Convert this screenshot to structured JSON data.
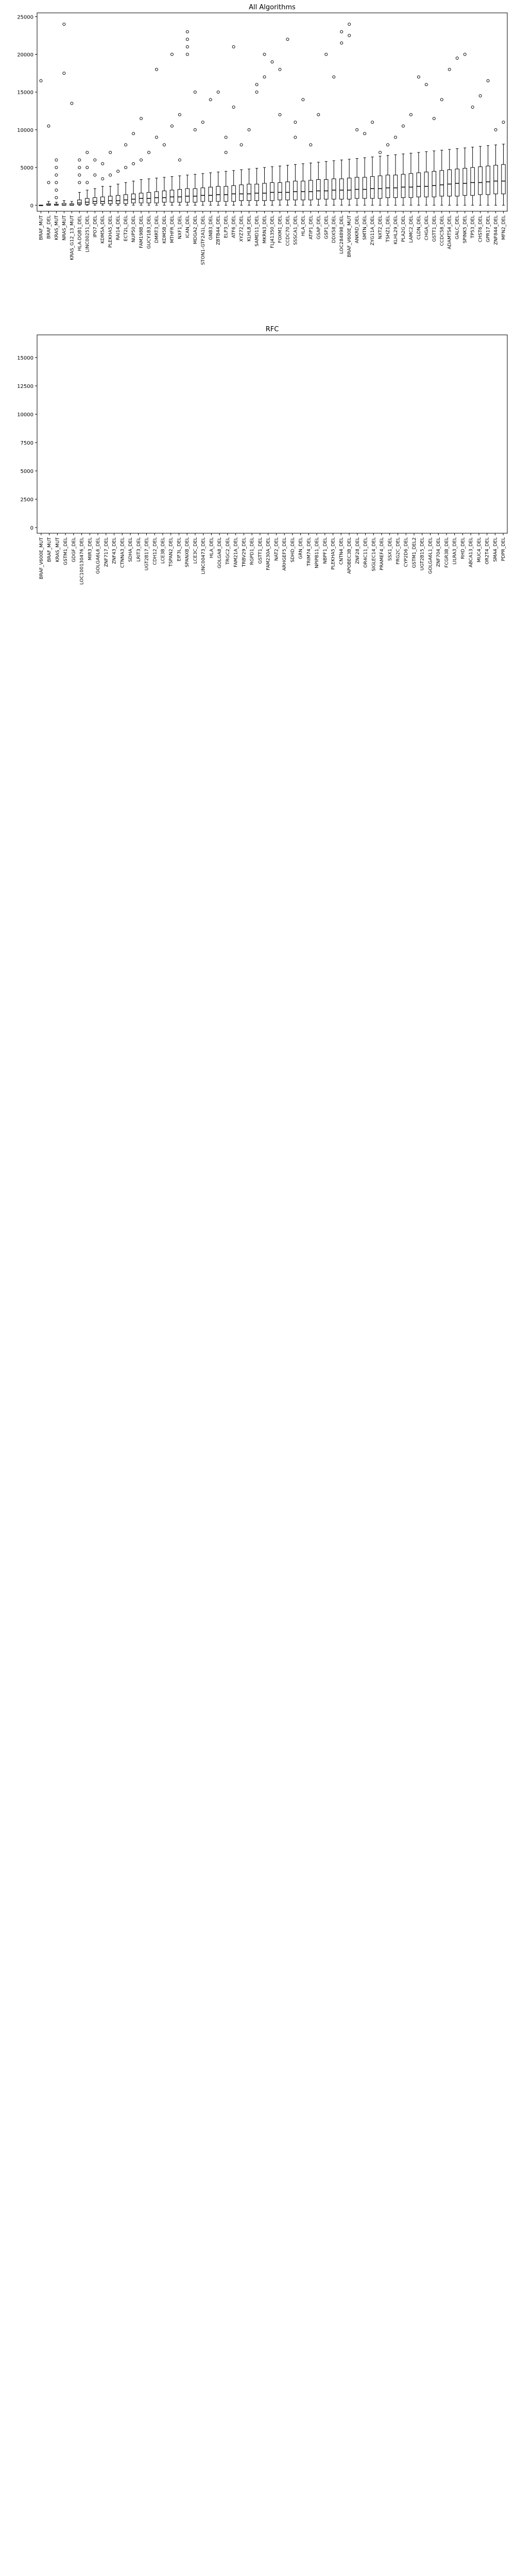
{
  "figure": {
    "background": "#ffffff",
    "box_color": "#000000",
    "median_color": "#000000"
  },
  "chart_data": [
    {
      "type": "box",
      "title": "All Algorithms",
      "ylim": [
        -800,
        25500
      ],
      "yticks": [
        0,
        5000,
        10000,
        15000,
        20000,
        25000
      ],
      "categories": [
        "BRAF_MUT",
        "BRAF_DEL",
        "KRAS_MUT",
        "NRAS_MUT",
        "KRAS_G12_13_MUT",
        "HLA-DQB1_DEL",
        "LINC00251_DEL",
        "IPO7_DEL",
        "KDM5A_DEL",
        "PLEKHA5_DEL",
        "RAI14_DEL",
        "ECT2L_DEL",
        "NUP50_DEL",
        "FAM198B_DEL",
        "GUCY1B3_DEL",
        "DMRT3_DEL",
        "KDM5B_DEL",
        "MTHFR_DEL",
        "NXF1_DEL",
        "ICAN_DEL",
        "MDGA2_DEL",
        "STON1-GTF2A1L_DEL",
        "GNB3_DEL",
        "ZBTB44_DEL",
        "ELP3_DEL",
        "ATF6_DEL",
        "XYZ72_DEL",
        "KLHL8_DEL",
        "SAMD11_DEL",
        "MKRN3_DEL",
        "FLJ41350_DEL",
        "FOXM1_DEL",
        "CCDC70_DEL",
        "SSSCA1_DEL",
        "HLA_DEL",
        "ATIP1_DEL",
        "GSAP_DEL",
        "GSP1_DEL",
        "DDX58_DEL",
        "LOC284898_DEL",
        "BRAF_V600E_MUT",
        "ANKRD_DEL",
        "SMTN_DEL",
        "ZYG11A_DEL",
        "NXT2_DEL",
        "TSHZ1_DEL",
        "KLHL29_DEL",
        "PLA2G_DEL",
        "LAMC2_DEL",
        "CLDN_DEL",
        "CHGA_DEL",
        "GSTT1_DEL",
        "CCDC58_DEL",
        "ADAMTS4_DEL",
        "GALC_DEL",
        "SPINK5_DEL",
        "TP53_DEL",
        "CHST6_DEL",
        "GPR17_DEL",
        "ZNF844_DEL",
        "MFN2_DEL"
      ],
      "series": [
        {
          "q1": 0,
          "median": 0,
          "q3": 0,
          "whisker_low": 0,
          "whisker_high": 0,
          "outliers": [
            16500
          ]
        },
        {
          "q1": 0,
          "median": 50,
          "q3": 200,
          "whisker_low": 0,
          "whisker_high": 500,
          "outliers": [
            3000,
            10500
          ]
        },
        {
          "q1": 0,
          "median": 20,
          "q3": 150,
          "whisker_low": 0,
          "whisker_high": 400,
          "outliers": [
            1000,
            2000,
            3000,
            4000,
            5000,
            6000
          ]
        },
        {
          "q1": 0,
          "median": 30,
          "q3": 250,
          "whisker_low": 0,
          "whisker_high": 600,
          "outliers": [
            24000,
            17500
          ]
        },
        {
          "q1": 0,
          "median": 20,
          "q3": 200,
          "whisker_low": 0,
          "whisker_high": 500,
          "outliers": [
            13500
          ]
        },
        {
          "q1": 100,
          "median": 300,
          "q3": 700,
          "whisker_low": 0,
          "whisker_high": 1700,
          "outliers": [
            3000,
            4000,
            5000,
            6000
          ]
        },
        {
          "q1": 100,
          "median": 400,
          "q3": 900,
          "whisker_low": 0,
          "whisker_high": 2000,
          "outliers": [
            3000,
            5000,
            7000
          ]
        },
        {
          "q1": 200,
          "median": 500,
          "q3": 1000,
          "whisker_low": 0,
          "whisker_high": 2200,
          "outliers": [
            4000,
            6000
          ]
        },
        {
          "q1": 200,
          "median": 500,
          "q3": 1100,
          "whisker_low": 0,
          "whisker_high": 2500,
          "outliers": [
            3500,
            5500
          ]
        },
        {
          "q1": 200,
          "median": 600,
          "q3": 1200,
          "whisker_low": 0,
          "whisker_high": 2500,
          "outliers": [
            4000,
            7000
          ]
        },
        {
          "q1": 200,
          "median": 600,
          "q3": 1300,
          "whisker_low": 0,
          "whisker_high": 2800,
          "outliers": [
            4500
          ]
        },
        {
          "q1": 200,
          "median": 700,
          "q3": 1400,
          "whisker_low": 0,
          "whisker_high": 3000,
          "outliers": [
            5000,
            8000
          ]
        },
        {
          "q1": 300,
          "median": 800,
          "q3": 1500,
          "whisker_low": 0,
          "whisker_high": 3200,
          "outliers": [
            5500,
            9500
          ]
        },
        {
          "q1": 300,
          "median": 900,
          "q3": 1600,
          "whisker_low": 0,
          "whisker_high": 3400,
          "outliers": [
            6000,
            11500
          ]
        },
        {
          "q1": 300,
          "median": 900,
          "q3": 1700,
          "whisker_low": 0,
          "whisker_high": 3500,
          "outliers": [
            7000
          ]
        },
        {
          "q1": 300,
          "median": 1000,
          "q3": 1800,
          "whisker_low": 0,
          "whisker_high": 3600,
          "outliers": [
            18000,
            9000
          ]
        },
        {
          "q1": 400,
          "median": 1000,
          "q3": 1900,
          "whisker_low": 0,
          "whisker_high": 3700,
          "outliers": [
            8000
          ]
        },
        {
          "q1": 400,
          "median": 1100,
          "q3": 2000,
          "whisker_low": 0,
          "whisker_high": 3800,
          "outliers": [
            10500,
            20000
          ]
        },
        {
          "q1": 400,
          "median": 1100,
          "q3": 2100,
          "whisker_low": 0,
          "whisker_high": 3900,
          "outliers": [
            6000,
            12000
          ]
        },
        {
          "q1": 400,
          "median": 1200,
          "q3": 2200,
          "whisker_low": 0,
          "whisker_high": 4000,
          "outliers": [
            20000,
            21000,
            22000,
            23000
          ]
        },
        {
          "q1": 400,
          "median": 1200,
          "q3": 2200,
          "whisker_low": 0,
          "whisker_high": 4100,
          "outliers": [
            10000,
            15000
          ]
        },
        {
          "q1": 500,
          "median": 1300,
          "q3": 2300,
          "whisker_low": 0,
          "whisker_high": 4200,
          "outliers": [
            11000
          ]
        },
        {
          "q1": 500,
          "median": 1300,
          "q3": 2400,
          "whisker_low": 0,
          "whisker_high": 4300,
          "outliers": [
            14000
          ]
        },
        {
          "q1": 500,
          "median": 1400,
          "q3": 2500,
          "whisker_low": 0,
          "whisker_high": 4400,
          "outliers": [
            15000
          ]
        },
        {
          "q1": 500,
          "median": 1400,
          "q3": 2500,
          "whisker_low": 0,
          "whisker_high": 4500,
          "outliers": [
            7000,
            9000
          ]
        },
        {
          "q1": 500,
          "median": 1500,
          "q3": 2600,
          "whisker_low": 0,
          "whisker_high": 4600,
          "outliers": [
            21000,
            13000
          ]
        },
        {
          "q1": 600,
          "median": 1500,
          "q3": 2700,
          "whisker_low": 0,
          "whisker_high": 4700,
          "outliers": [
            8000
          ]
        },
        {
          "q1": 600,
          "median": 1500,
          "q3": 2800,
          "whisker_low": 0,
          "whisker_high": 4800,
          "outliers": [
            10000
          ]
        },
        {
          "q1": 600,
          "median": 1600,
          "q3": 2800,
          "whisker_low": 0,
          "whisker_high": 4900,
          "outliers": [
            15000,
            16000
          ]
        },
        {
          "q1": 600,
          "median": 1600,
          "q3": 2900,
          "whisker_low": 0,
          "whisker_high": 5000,
          "outliers": [
            20000,
            17000
          ]
        },
        {
          "q1": 600,
          "median": 1700,
          "q3": 3000,
          "whisker_low": 0,
          "whisker_high": 5100,
          "outliers": [
            19000
          ]
        },
        {
          "q1": 700,
          "median": 1700,
          "q3": 3000,
          "whisker_low": 0,
          "whisker_high": 5200,
          "outliers": [
            18000,
            12000
          ]
        },
        {
          "q1": 700,
          "median": 1700,
          "q3": 3100,
          "whisker_low": 0,
          "whisker_high": 5300,
          "outliers": [
            22000
          ]
        },
        {
          "q1": 700,
          "median": 1800,
          "q3": 3200,
          "whisker_low": 0,
          "whisker_high": 5400,
          "outliers": [
            9000,
            11000
          ]
        },
        {
          "q1": 700,
          "median": 1800,
          "q3": 3200,
          "whisker_low": 0,
          "whisker_high": 5500,
          "outliers": [
            14000
          ]
        },
        {
          "q1": 700,
          "median": 1800,
          "q3": 3300,
          "whisker_low": 0,
          "whisker_high": 5600,
          "outliers": [
            8000
          ]
        },
        {
          "q1": 800,
          "median": 1900,
          "q3": 3400,
          "whisker_low": 0,
          "whisker_high": 5700,
          "outliers": [
            12000
          ]
        },
        {
          "q1": 800,
          "median": 1900,
          "q3": 3400,
          "whisker_low": 0,
          "whisker_high": 5800,
          "outliers": [
            20000
          ]
        },
        {
          "q1": 800,
          "median": 2000,
          "q3": 3500,
          "whisker_low": 0,
          "whisker_high": 5900,
          "outliers": [
            17000
          ]
        },
        {
          "q1": 800,
          "median": 2000,
          "q3": 3500,
          "whisker_low": 0,
          "whisker_high": 6000,
          "outliers": [
            23000,
            21500
          ]
        },
        {
          "q1": 800,
          "median": 2000,
          "q3": 3600,
          "whisker_low": 0,
          "whisker_high": 6100,
          "outliers": [
            24000,
            22500
          ]
        },
        {
          "q1": 900,
          "median": 2100,
          "q3": 3700,
          "whisker_low": 0,
          "whisker_high": 6200,
          "outliers": [
            10000
          ]
        },
        {
          "q1": 900,
          "median": 2100,
          "q3": 3700,
          "whisker_low": 0,
          "whisker_high": 6300,
          "outliers": [
            9500
          ]
        },
        {
          "q1": 900,
          "median": 2200,
          "q3": 3800,
          "whisker_low": 0,
          "whisker_high": 6400,
          "outliers": [
            11000
          ]
        },
        {
          "q1": 900,
          "median": 2200,
          "q3": 3900,
          "whisker_low": 0,
          "whisker_high": 6500,
          "outliers": [
            7000
          ]
        },
        {
          "q1": 1000,
          "median": 2300,
          "q3": 4000,
          "whisker_low": 0,
          "whisker_high": 6600,
          "outliers": [
            8000
          ]
        },
        {
          "q1": 1000,
          "median": 2300,
          "q3": 4000,
          "whisker_low": 0,
          "whisker_high": 6700,
          "outliers": [
            9000
          ]
        },
        {
          "q1": 1000,
          "median": 2400,
          "q3": 4100,
          "whisker_low": 0,
          "whisker_high": 6800,
          "outliers": [
            10500
          ]
        },
        {
          "q1": 1000,
          "median": 2400,
          "q3": 4200,
          "whisker_low": 0,
          "whisker_high": 6900,
          "outliers": [
            12000
          ]
        },
        {
          "q1": 1100,
          "median": 2500,
          "q3": 4300,
          "whisker_low": 0,
          "whisker_high": 7000,
          "outliers": [
            17000
          ]
        },
        {
          "q1": 1100,
          "median": 2500,
          "q3": 4400,
          "whisker_low": 0,
          "whisker_high": 7100,
          "outliers": [
            16000
          ]
        },
        {
          "q1": 1100,
          "median": 2600,
          "q3": 4500,
          "whisker_low": 0,
          "whisker_high": 7200,
          "outliers": [
            11500
          ]
        },
        {
          "q1": 1200,
          "median": 2700,
          "q3": 4600,
          "whisker_low": 0,
          "whisker_high": 7300,
          "outliers": [
            14000
          ]
        },
        {
          "q1": 1200,
          "median": 2800,
          "q3": 4700,
          "whisker_low": 0,
          "whisker_high": 7400,
          "outliers": [
            18000
          ]
        },
        {
          "q1": 1200,
          "median": 2900,
          "q3": 4800,
          "whisker_low": 0,
          "whisker_high": 7500,
          "outliers": [
            19500
          ]
        },
        {
          "q1": 1300,
          "median": 2900,
          "q3": 4900,
          "whisker_low": 0,
          "whisker_high": 7600,
          "outliers": [
            20000
          ]
        },
        {
          "q1": 1300,
          "median": 3000,
          "q3": 5000,
          "whisker_low": 0,
          "whisker_high": 7700,
          "outliers": [
            13000
          ]
        },
        {
          "q1": 1400,
          "median": 3000,
          "q3": 5100,
          "whisker_low": 0,
          "whisker_high": 7800,
          "outliers": [
            14500
          ]
        },
        {
          "q1": 1400,
          "median": 3100,
          "q3": 5200,
          "whisker_low": 0,
          "whisker_high": 7900,
          "outliers": [
            16500
          ]
        },
        {
          "q1": 1500,
          "median": 3200,
          "q3": 5300,
          "whisker_low": 0,
          "whisker_high": 8000,
          "outliers": [
            10000
          ]
        },
        {
          "q1": 1500,
          "median": 3200,
          "q3": 5400,
          "whisker_low": 0,
          "whisker_high": 8100,
          "outliers": [
            11000
          ]
        }
      ]
    },
    {
      "type": "box",
      "title": "RFC",
      "ylim": [
        -500,
        17000
      ],
      "yticks": [
        0,
        2500,
        5000,
        7500,
        10000,
        12500,
        15000
      ],
      "categories": [
        "BRAF_V600E_MUT",
        "BRAF_MUT",
        "KRAS_MUT",
        "GSTM1_DEL",
        "GDGF_DEL",
        "LOC100130476_DEL",
        "MIR3_DEL",
        "GOLGA6L6_DEL",
        "ZNF717_DEL",
        "ZNF43_DEL",
        "CTNNA3_DEL",
        "SDHA_DEL",
        "LRIT3_DEL",
        "UGT2B17_DEL",
        "CDH12_DEL",
        "LCE3B_DEL",
        "TSPAN2_DEL",
        "EIF3L_DEL",
        "SPANXB_DEL",
        "LCE3C_DEL",
        "LINC00473_DEL",
        "HLA_DEL",
        "GOLGA8_DEL",
        "TRGC2_DEL",
        "FAM21A_DEL",
        "TRBV29_DEL",
        "RGPD1_DEL",
        "GSTT1_DEL",
        "FAM230A_DEL",
        "NAT2_DEL",
        "ARHGEF5_DEL",
        "SDHD_DEL",
        "GRN_DEL",
        "TRIM74_DEL",
        "NPIPB11_DEL",
        "NBPF1_DEL",
        "PLEKHA5_DEL",
        "CNTN4_DEL",
        "APOBEC3B_DEL",
        "ZNF28_DEL",
        "OR4C11_DEL",
        "SIGLEC14_DEL",
        "PRAMEF4_DEL",
        "SSX1_DEL",
        "FRG2C_DEL",
        "CYP2D6_DEL",
        "GSTM1_DEL2",
        "UGT2B15_DEL",
        "GOLGA6L1_DEL",
        "ZNF704_DEL",
        "FCGR3B_DEL",
        "LILRA3_DEL",
        "RHD_DEL",
        "ABCA13_DEL",
        "MUC4_DEL",
        "OR2T4_DEL",
        "SMA4_DEL",
        "PDPR_DEL"
      ],
      "series": []
    }
  ]
}
